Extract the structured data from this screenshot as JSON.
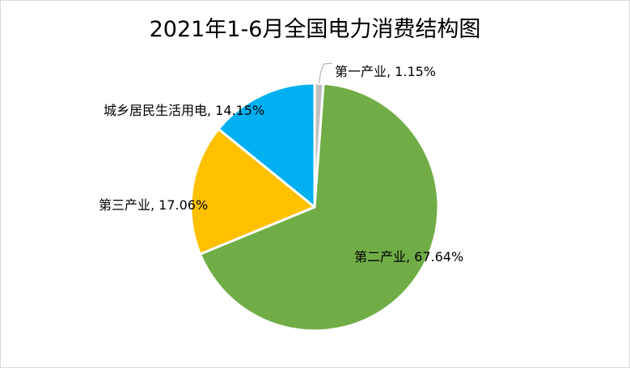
{
  "chart_data": {
    "type": "pie",
    "title": "2021年1-6月全国电力消费结构图",
    "slices": [
      {
        "name": "第一产业",
        "value": 1.15,
        "label": "第一产业, 1.15%",
        "color": "#bfbfbf"
      },
      {
        "name": "第二产业",
        "value": 67.64,
        "label": "第二产业, 67.64%",
        "color": "#70ad47"
      },
      {
        "name": "第三产业",
        "value": 17.06,
        "label": "第三产业, 17.06%",
        "color": "#ffc000"
      },
      {
        "name": "城乡居民生活用电",
        "value": 14.15,
        "label": "城乡居民生活用电, 14.15%",
        "color": "#00b0f0"
      }
    ],
    "legend": "none",
    "label_position": "outside"
  }
}
